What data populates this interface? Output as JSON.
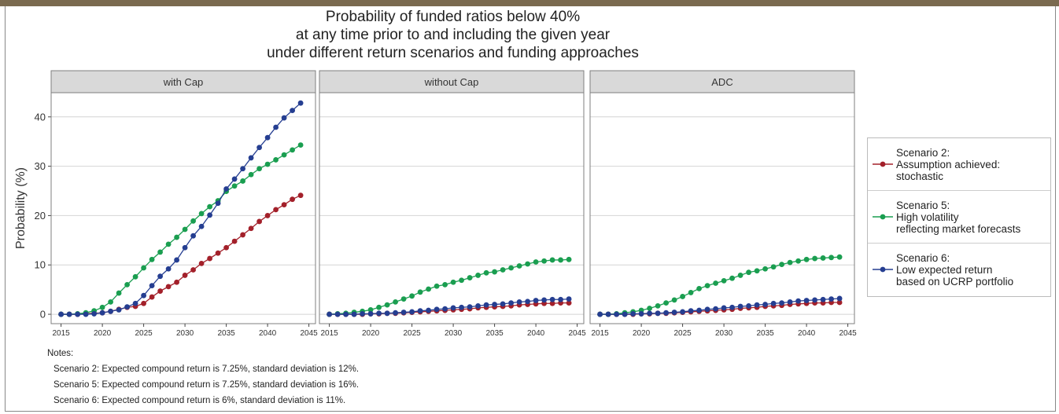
{
  "title": "Probability of funded ratios below 40%\nat any time prior to and including the given year\nunder different return scenarios and funding approaches",
  "notes": {
    "heading": "Notes:",
    "lines": [
      "Scenario 2: Expected compound return is 7.25%, standard deviation is 12%.",
      "Scenario 5: Expected compound return is 7.25%, standard deviation is 16%.",
      "Scenario 6: Expected compound return is 6%, standard deviation is 11%."
    ]
  },
  "chart_data": [
    {
      "type": "line",
      "title": "with Cap",
      "ylabel": "Probability (%)",
      "x": [
        2015,
        2016,
        2017,
        2018,
        2019,
        2020,
        2021,
        2022,
        2023,
        2024,
        2025,
        2026,
        2027,
        2028,
        2029,
        2030,
        2031,
        2032,
        2033,
        2034,
        2035,
        2036,
        2037,
        2038,
        2039,
        2040,
        2041,
        2042,
        2043,
        2044
      ],
      "xlim": [
        2013.8,
        2045.8
      ],
      "xticks": [
        2015,
        2020,
        2025,
        2030,
        2035,
        2040,
        2045
      ],
      "ylim": [
        -1.9,
        44.9
      ],
      "yticks": [
        0,
        10,
        20,
        30,
        40
      ],
      "grid": true,
      "series": [
        {
          "name": "Scenario 2:\nAssumption achieved:\nstochastic",
          "color": "#a3202a",
          "values": [
            0,
            0,
            0,
            0.1,
            0.2,
            0.3,
            0.6,
            1.0,
            1.4,
            1.6,
            2.2,
            3.5,
            4.7,
            5.6,
            6.5,
            7.9,
            9.0,
            10.3,
            11.3,
            12.4,
            13.5,
            14.8,
            16.1,
            17.4,
            18.8,
            20.0,
            21.2,
            22.2,
            23.3,
            24.1
          ]
        },
        {
          "name": "Scenario 5:\nHigh volatility\nreflecting market forecasts",
          "color": "#1a9e50",
          "values": [
            0,
            0,
            0.1,
            0.3,
            0.7,
            1.4,
            2.5,
            4.3,
            6.0,
            7.6,
            9.4,
            11.1,
            12.6,
            14.2,
            15.6,
            17.2,
            18.9,
            20.4,
            21.8,
            23.0,
            24.9,
            26.0,
            27.0,
            28.3,
            29.5,
            30.4,
            31.3,
            32.3,
            33.3,
            34.3
          ]
        },
        {
          "name": "Scenario 6:\nLow expected return\nbased on UCRP portfolio",
          "color": "#253e91",
          "values": [
            0,
            0,
            0,
            0,
            0.1,
            0.3,
            0.6,
            0.9,
            1.5,
            2.2,
            3.8,
            5.8,
            7.7,
            9.2,
            11.0,
            13.5,
            15.9,
            17.8,
            20.1,
            22.5,
            25.4,
            27.4,
            29.5,
            31.7,
            33.8,
            35.8,
            37.9,
            39.8,
            41.3,
            42.8
          ]
        }
      ]
    },
    {
      "type": "line",
      "title": "without Cap",
      "x": [
        2015,
        2016,
        2017,
        2018,
        2019,
        2020,
        2021,
        2022,
        2023,
        2024,
        2025,
        2026,
        2027,
        2028,
        2029,
        2030,
        2031,
        2032,
        2033,
        2034,
        2035,
        2036,
        2037,
        2038,
        2039,
        2040,
        2041,
        2042,
        2043,
        2044
      ],
      "xlim": [
        2013.8,
        2045.8
      ],
      "xticks": [
        2015,
        2020,
        2025,
        2030,
        2035,
        2040,
        2045
      ],
      "ylim": [
        -1.9,
        44.9
      ],
      "yticks": [
        0,
        10,
        20,
        30,
        40
      ],
      "grid": true,
      "series": [
        {
          "color": "#a3202a",
          "values": [
            0,
            0,
            0,
            0,
            0,
            0.1,
            0.1,
            0.2,
            0.2,
            0.3,
            0.4,
            0.5,
            0.6,
            0.7,
            0.8,
            0.9,
            1.0,
            1.1,
            1.3,
            1.4,
            1.5,
            1.6,
            1.7,
            1.9,
            2.0,
            2.1,
            2.2,
            2.2,
            2.3,
            2.3
          ]
        },
        {
          "color": "#1a9e50",
          "values": [
            0,
            0.1,
            0.2,
            0.4,
            0.6,
            0.9,
            1.4,
            1.9,
            2.5,
            3.1,
            3.7,
            4.5,
            5.1,
            5.7,
            6.0,
            6.5,
            6.9,
            7.4,
            7.9,
            8.4,
            8.6,
            9.0,
            9.4,
            9.8,
            10.2,
            10.6,
            10.8,
            11.0,
            11.0,
            11.1
          ]
        },
        {
          "color": "#253e91",
          "values": [
            0,
            0,
            0,
            0,
            0.1,
            0.1,
            0.2,
            0.2,
            0.3,
            0.4,
            0.5,
            0.7,
            0.8,
            1.0,
            1.1,
            1.3,
            1.4,
            1.5,
            1.7,
            1.9,
            2.0,
            2.1,
            2.3,
            2.5,
            2.6,
            2.8,
            2.9,
            3.0,
            3.0,
            3.1
          ]
        }
      ]
    },
    {
      "type": "line",
      "title": "ADC",
      "x": [
        2015,
        2016,
        2017,
        2018,
        2019,
        2020,
        2021,
        2022,
        2023,
        2024,
        2025,
        2026,
        2027,
        2028,
        2029,
        2030,
        2031,
        2032,
        2033,
        2034,
        2035,
        2036,
        2037,
        2038,
        2039,
        2040,
        2041,
        2042,
        2043,
        2044
      ],
      "xlim": [
        2013.8,
        2045.8
      ],
      "xticks": [
        2015,
        2020,
        2025,
        2030,
        2035,
        2040,
        2045
      ],
      "ylim": [
        -1.9,
        44.9
      ],
      "yticks": [
        0,
        10,
        20,
        30,
        40
      ],
      "grid": true,
      "series": [
        {
          "color": "#a3202a",
          "values": [
            0,
            0,
            0,
            0,
            0,
            0.1,
            0.1,
            0.2,
            0.2,
            0.3,
            0.4,
            0.5,
            0.6,
            0.7,
            0.8,
            0.9,
            1.0,
            1.2,
            1.3,
            1.4,
            1.6,
            1.7,
            1.8,
            2.0,
            2.1,
            2.2,
            2.3,
            2.3,
            2.4,
            2.4
          ]
        },
        {
          "color": "#1a9e50",
          "values": [
            0,
            0,
            0.1,
            0.3,
            0.5,
            0.8,
            1.2,
            1.7,
            2.3,
            2.9,
            3.6,
            4.4,
            5.2,
            5.8,
            6.3,
            6.8,
            7.3,
            7.9,
            8.5,
            8.8,
            9.2,
            9.6,
            10.1,
            10.5,
            10.8,
            11.1,
            11.3,
            11.4,
            11.5,
            11.6
          ]
        },
        {
          "color": "#253e91",
          "values": [
            0,
            0,
            0,
            0,
            0.1,
            0.1,
            0.2,
            0.2,
            0.3,
            0.4,
            0.5,
            0.7,
            0.8,
            1.0,
            1.1,
            1.3,
            1.4,
            1.6,
            1.7,
            1.9,
            2.0,
            2.2,
            2.3,
            2.5,
            2.7,
            2.8,
            2.9,
            3.0,
            3.1,
            3.2
          ]
        }
      ]
    }
  ]
}
